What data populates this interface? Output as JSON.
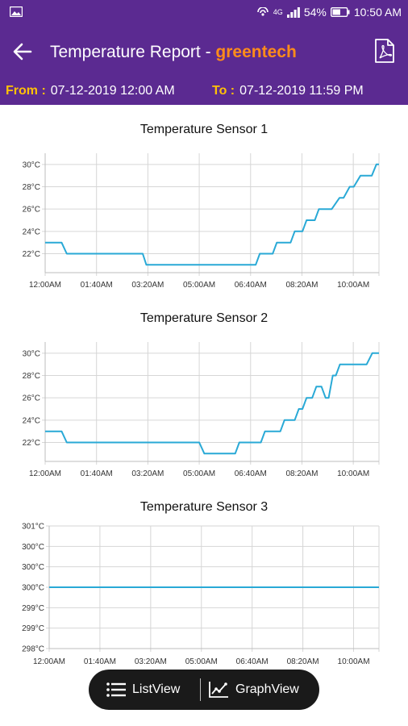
{
  "status_bar": {
    "network": "4G",
    "battery": "54%",
    "time": "10:50 AM",
    "icons": [
      "gallery-icon",
      "hotspot-icon",
      "signal-icon",
      "battery-icon"
    ]
  },
  "app_bar": {
    "title_prefix": "Temperature Report - ",
    "title_brand": "greentech",
    "back_icon": "arrow-left-icon",
    "pdf_icon": "pdf-icon"
  },
  "date_range": {
    "from_label": "From :",
    "from_value": "07-12-2019 12:00 AM",
    "to_label": "To :",
    "to_value": "07-12-2019 11:59 PM"
  },
  "colors": {
    "header_bg": "#5b2a91",
    "brand": "#ff8c1a",
    "date_label": "#ffc107",
    "series_line": "#29a9d6",
    "grid": "#d6d6d6",
    "toggle_bg": "#1a1a1a"
  },
  "view_toggle": {
    "list_label": "ListView",
    "graph_label": "GraphView",
    "selected": "GraphView"
  },
  "chart_data": [
    {
      "type": "line",
      "title": "Temperature Sensor 1",
      "x_tick_labels": [
        "12:00AM",
        "01:40AM",
        "03:20AM",
        "05:00AM",
        "06:40AM",
        "08:20AM",
        "10:00AM"
      ],
      "x_tick_minutes": [
        0,
        100,
        200,
        300,
        400,
        500,
        600
      ],
      "x_range_minutes": [
        0,
        650
      ],
      "y_tick_labels": [
        "22°C",
        "24°C",
        "26°C",
        "28°C",
        "30°C"
      ],
      "y_tick_values": [
        22,
        24,
        26,
        28,
        30
      ],
      "ylim": [
        20.3,
        31
      ],
      "grid": true,
      "series": [
        {
          "x": [
            0,
            32,
            42,
            80,
            190,
            197,
            290,
            410,
            418,
            443,
            451,
            478,
            486,
            501,
            509,
            525,
            533,
            550,
            558,
            573,
            581,
            593,
            601,
            614,
            622,
            636,
            645,
            650
          ],
          "y": [
            23,
            23,
            22,
            22,
            22,
            21,
            21,
            21,
            22,
            22,
            23,
            23,
            24,
            24,
            25,
            25,
            26,
            26,
            26,
            27,
            27,
            28,
            28,
            29,
            29,
            29,
            30,
            30
          ]
        }
      ]
    },
    {
      "type": "line",
      "title": "Temperature Sensor 2",
      "x_tick_labels": [
        "12:00AM",
        "01:40AM",
        "03:20AM",
        "05:00AM",
        "06:40AM",
        "08:20AM",
        "10:00AM"
      ],
      "x_tick_minutes": [
        0,
        100,
        200,
        300,
        400,
        500,
        600
      ],
      "x_range_minutes": [
        0,
        650
      ],
      "y_tick_labels": [
        "22°C",
        "24°C",
        "26°C",
        "28°C",
        "30°C"
      ],
      "y_tick_values": [
        22,
        24,
        26,
        28,
        30
      ],
      "ylim": [
        20.3,
        31
      ],
      "grid": true,
      "series": [
        {
          "x": [
            0,
            32,
            42,
            300,
            310,
            370,
            378,
            420,
            428,
            458,
            466,
            486,
            494,
            501,
            509,
            520,
            528,
            538,
            546,
            552,
            560,
            566,
            574,
            597,
            603,
            626,
            637,
            650
          ],
          "y": [
            23,
            23,
            22,
            22,
            21,
            21,
            22,
            22,
            23,
            23,
            24,
            24,
            25,
            25,
            26,
            26,
            27,
            27,
            26,
            26,
            28,
            28,
            29,
            29,
            29,
            29,
            30,
            30
          ]
        }
      ]
    },
    {
      "type": "line",
      "title": "Temperature Sensor 3",
      "x_tick_labels": [
        "12:00AM",
        "01:40AM",
        "03:20AM",
        "05:00AM",
        "06:40AM",
        "08:20AM",
        "10:00AM"
      ],
      "x_tick_minutes": [
        0,
        100,
        200,
        300,
        400,
        500,
        600
      ],
      "x_range_minutes": [
        0,
        650
      ],
      "y_tick_labels": [
        "298°C",
        "299°C",
        "299°C",
        "300°C",
        "300°C",
        "300°C",
        "301°C"
      ],
      "y_tick_values": [
        298,
        298.5,
        299,
        299.5,
        300,
        300.5,
        301
      ],
      "ylim": [
        298,
        301
      ],
      "grid": true,
      "series": [
        {
          "x": [
            0,
            650
          ],
          "y": [
            299.5,
            299.5
          ]
        }
      ]
    }
  ]
}
